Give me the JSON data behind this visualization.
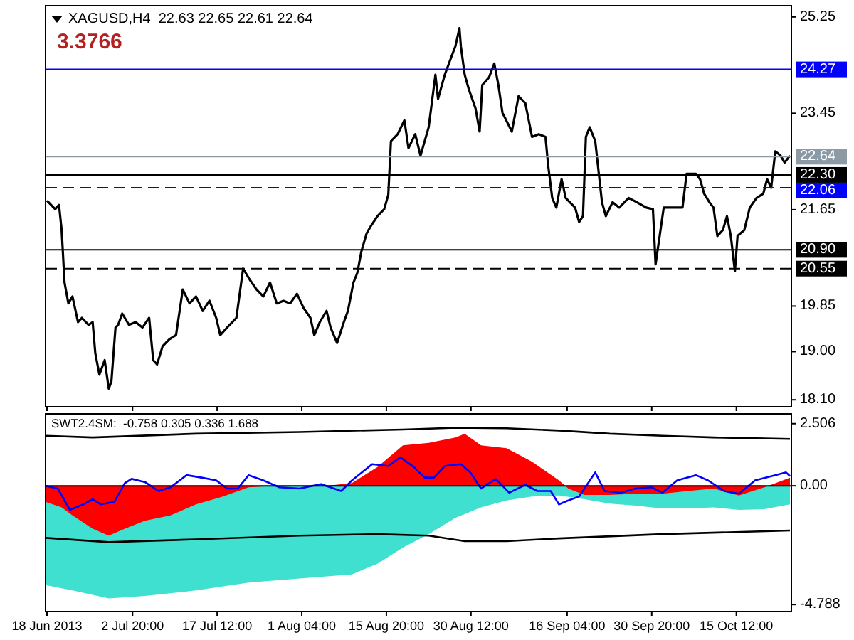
{
  "chart_data": [
    {
      "type": "line",
      "title": "XAGUSD,H4  22.63 22.65 22.61 22.64",
      "annotations": [
        "3.3766"
      ],
      "tick_labels": "y",
      "xlim": [
        "2013-06-17T18:00",
        "2013-10-25T01:00"
      ],
      "xticks": [
        {
          "value": "2013-06-18",
          "label": null
        },
        {
          "value": "2013-07-02T20:00",
          "label": null
        },
        {
          "value": "2013-07-17T12:00",
          "label": null
        },
        {
          "value": "2013-08-01T04:00",
          "label": null
        },
        {
          "value": "2013-08-15T20:00",
          "label": null
        },
        {
          "value": "2013-08-30T12:00",
          "label": null
        },
        {
          "value": "2013-09-16T04:00",
          "label": null
        },
        {
          "value": "2013-09-30T20:00",
          "label": null
        },
        {
          "value": "2013-10-15T12:00",
          "label": null
        }
      ],
      "ylim": [
        17.97,
        25.46
      ],
      "yticks": [
        25.25,
        23.45,
        21.65,
        19.85,
        {
          "value": 19,
          "label": "19.00"
        },
        {
          "value": 18.1,
          "label": "18.10"
        }
      ],
      "ref_lines": [
        {
          "axis": "y",
          "value": 24.27,
          "label": "24.27",
          "color": "#0000ff",
          "line_style": "solid"
        },
        {
          "axis": "y",
          "value": 22.64,
          "label": "22.64",
          "color": "#8c9aa5",
          "line_style": "solid"
        },
        {
          "axis": "y",
          "value": 22.3,
          "label": "22.30",
          "color": "#000000",
          "line_style": "solid"
        },
        {
          "axis": "y",
          "value": 22.06,
          "label": "22.06",
          "color": "#0000ff",
          "line_style": "dashed"
        },
        {
          "axis": "y",
          "value": 20.9,
          "label": "20.90",
          "color": "#000000",
          "line_style": "solid"
        },
        {
          "axis": "y",
          "value": 20.55,
          "label": "20.55",
          "color": "#000000",
          "line_style": "dashed"
        }
      ],
      "series": [
        {
          "color": "#000000",
          "x": [
            "2013-06-18T00:00",
            "2013-06-19T10:00",
            "2013-06-20T02:00",
            "2013-06-20T13:00",
            "2013-06-21T01:00",
            "2013-06-21T17:00",
            "2013-06-22T10:00",
            "2013-06-23T09:00",
            "2013-06-24T01:00",
            "2013-06-25T05:00",
            "2013-06-25T22:00",
            "2013-06-26T09:00",
            "2013-06-27T02:00",
            "2013-06-28T00:00",
            "2013-06-28T17:00",
            "2013-06-29T04:00",
            "2013-06-29T21:00",
            "2013-06-30T08:00",
            "2013-07-01T01:00",
            "2013-07-02T05:00",
            "2013-07-03T09:00",
            "2013-07-04T13:00",
            "2013-07-05T17:00",
            "2013-07-06T10:00",
            "2013-07-07T02:00",
            "2013-07-08T01:00",
            "2013-07-09T05:00",
            "2013-07-10T09:00",
            "2013-07-11T13:00",
            "2013-07-12T17:00",
            "2013-07-13T20:00",
            "2013-07-15T00:00",
            "2013-07-16T04:00",
            "2013-07-17T08:00",
            "2013-07-18T01:00",
            "2013-07-19T16:00",
            "2013-07-20T20:00",
            "2013-07-22T00:00",
            "2013-07-23T04:00",
            "2013-07-24T08:00",
            "2013-07-25T12:00",
            "2013-07-26T16:00",
            "2013-07-27T20:00",
            "2013-07-29T00:00",
            "2013-07-30T04:00",
            "2013-07-31T08:00",
            "2013-08-01T12:00",
            "2013-08-02T16:00",
            "2013-08-03T08:00",
            "2013-08-04T07:00",
            "2013-08-05T11:00",
            "2013-08-06T04:00",
            "2013-08-07T07:00",
            "2013-08-08T11:00",
            "2013-08-09T04:00",
            "2013-08-10T03:00",
            "2013-08-10T19:00",
            "2013-08-11T12:00",
            "2013-08-12T10:00",
            "2013-08-13T03:00",
            "2013-08-14T07:00",
            "2013-08-15T11:00",
            "2013-08-16T04:00",
            "2013-08-16T15:00",
            "2013-08-17T19:00",
            "2013-08-18T23:00",
            "2013-08-19T16:00",
            "2013-08-20T20:00",
            "2013-08-21T18:00",
            "2013-08-23T04:00",
            "2013-08-24T08:00",
            "2013-08-24T19:00",
            "2013-08-25T23:00",
            "2013-08-27T03:00",
            "2013-08-27T19:00",
            "2013-08-28T12:00",
            "2013-08-28T18:00",
            "2013-08-29T10:00",
            "2013-08-30T03:00",
            "2013-08-31T07:00",
            "2013-09-01T00:00",
            "2013-09-01T11:00",
            "2013-09-02T15:00",
            "2013-09-03T13:00",
            "2013-09-04T06:00",
            "2013-09-04T23:00",
            "2013-09-06T14:00",
            "2013-09-07T18:00",
            "2013-09-08T22:00",
            "2013-09-10T02:00",
            "2013-09-11T06:00",
            "2013-09-12T10:00",
            "2013-09-12T21:00",
            "2013-09-13T14:00",
            "2013-09-14T07:00",
            "2013-09-15T05:00",
            "2013-09-15T22:00",
            "2013-09-17T13:00",
            "2013-09-18T06:00",
            "2013-09-18T22:00",
            "2013-09-19T10:00",
            "2013-09-20T02:00",
            "2013-09-21T01:00",
            "2013-09-21T12:00",
            "2013-09-22T05:00",
            "2013-09-22T21:00",
            "2013-09-24T01:00",
            "2013-09-25T05:00",
            "2013-09-26T20:00",
            "2013-09-28T06:00",
            "2013-09-29T21:00",
            "2013-10-01T01:00",
            "2013-10-01T12:00",
            "2013-10-02T05:00",
            "2013-10-02T22:00",
            "2013-10-04T13:00",
            "2013-10-06T04:00",
            "2013-10-06T21:00",
            "2013-10-08T12:00",
            "2013-10-09T05:00",
            "2013-10-09T22:00",
            "2013-10-10T20:00",
            "2013-10-11T13:00",
            "2013-10-12T05:00",
            "2013-10-13T04:00",
            "2013-10-13T21:00",
            "2013-10-14T13:00",
            "2013-10-15T06:00",
            "2013-10-15T17:00",
            "2013-10-16T21:00",
            "2013-10-17T20:00",
            "2013-10-19T00:00",
            "2013-10-20T04:00",
            "2013-10-20T20:00",
            "2013-10-21T13:00",
            "2013-10-22T06:00",
            "2013-10-23T04:00",
            "2013-10-23T21:00",
            "2013-10-24T19:00"
          ],
          "values": [
            21.82,
            21.66,
            21.74,
            21.27,
            20.29,
            19.9,
            20.03,
            19.55,
            19.63,
            19.5,
            19.55,
            18.97,
            18.57,
            18.84,
            18.31,
            18.44,
            19.45,
            19.5,
            19.71,
            19.5,
            19.55,
            19.45,
            19.63,
            18.84,
            18.76,
            19.1,
            19.23,
            19.31,
            20.16,
            19.9,
            20.03,
            19.76,
            19.95,
            19.63,
            19.31,
            19.5,
            19.63,
            20.55,
            20.34,
            20.16,
            20.03,
            20.29,
            19.9,
            19.95,
            19.9,
            20.08,
            19.81,
            19.63,
            19.31,
            19.55,
            19.76,
            19.45,
            19.16,
            19.55,
            19.76,
            20.29,
            20.47,
            20.87,
            21.21,
            21.34,
            21.53,
            21.66,
            21.93,
            22.93,
            23.06,
            23.32,
            22.8,
            23.06,
            22.66,
            23.19,
            24.17,
            23.72,
            24.17,
            24.51,
            24.7,
            25.04,
            24.7,
            24.17,
            23.9,
            23.54,
            23.11,
            23.98,
            24.12,
            24.38,
            23.98,
            23.46,
            23.11,
            23.77,
            23.64,
            23.01,
            23.06,
            23.01,
            22.48,
            21.87,
            21.69,
            22.22,
            21.87,
            21.69,
            21.42,
            21.53,
            23.01,
            23.19,
            22.93,
            22.48,
            21.79,
            21.53,
            21.79,
            21.69,
            21.87,
            21.79,
            21.69,
            21.66,
            20.63,
            21.16,
            21.69,
            21.69,
            21.69,
            22.32,
            22.32,
            22.22,
            21.95,
            21.79,
            21.69,
            21.16,
            21.27,
            21.53,
            21.16,
            20.5,
            21.16,
            21.27,
            21.69,
            21.87,
            21.95,
            22.22,
            22.06,
            22.74,
            22.66,
            22.53,
            22.66
          ]
        }
      ]
    },
    {
      "type": "line",
      "title": "SWT2.4SM:  -0.758 0.305 0.336 1.688",
      "xlim": [
        "2013-06-17T18:00",
        "2013-10-25T01:00"
      ],
      "xticks": [
        {
          "value": "2013-06-18",
          "label": "18 Jun 2013"
        },
        {
          "value": "2013-07-02T20:00",
          "label": "2 Jul 20:00"
        },
        {
          "value": "2013-07-17T12:00",
          "label": "17 Jul 12:00"
        },
        {
          "value": "2013-08-01T04:00",
          "label": "1 Aug 04:00"
        },
        {
          "value": "2013-08-15T20:00",
          "label": "15 Aug 20:00"
        },
        {
          "value": "2013-08-30T12:00",
          "label": "30 Aug 12:00"
        },
        {
          "value": "2013-09-16T04:00",
          "label": "16 Sep 04:00"
        },
        {
          "value": "2013-09-30T20:00",
          "label": "30 Sep 20:00"
        },
        {
          "value": "2013-10-15T12:00",
          "label": "15 Oct 12:00"
        }
      ],
      "ylim": [
        -5.07,
        2.9
      ],
      "yticks": [
        2.506,
        {
          "value": 0,
          "label": "0.00"
        },
        -4.788
      ],
      "ref_lines": [
        {
          "axis": "y",
          "value": 0,
          "color": "#000000",
          "line_style": "solid"
        }
      ],
      "series": [
        {
          "type": "area",
          "color": "#40e0d0",
          "x": [
            "2013-06-17T18:00",
            "2013-06-22T10:00",
            "2013-06-28T17:00",
            "2013-07-05T00:00",
            "2013-07-13T20:00",
            "2013-07-22T23:00",
            "2013-07-31T19:00",
            "2013-08-09T21:00",
            "2013-08-14T07:00",
            "2013-08-18T17:00",
            "2013-08-23T04:00",
            "2013-08-27T19:00",
            "2013-09-01T06:00",
            "2013-09-05T16:00",
            "2013-09-10T02:00",
            "2013-09-14T18:00",
            "2013-09-19T04:00",
            "2013-09-23T14:00",
            "2013-09-28T00:00",
            "2013-10-02T16:00",
            "2013-10-07T02:00",
            "2013-10-11T13:00",
            "2013-10-15T23:00",
            "2013-10-20T09:00",
            "2013-10-24T19:00"
          ],
          "values": [
            -4.0,
            -4.22,
            -4.54,
            -4.44,
            -4.22,
            -3.9,
            -3.74,
            -3.57,
            -3.14,
            -2.49,
            -1.95,
            -1.29,
            -0.87,
            -0.59,
            -0.43,
            -0.39,
            -0.54,
            -0.72,
            -0.8,
            -0.91,
            -0.91,
            -0.87,
            -0.97,
            -0.94,
            -0.75
          ]
        },
        {
          "type": "area",
          "color": "#ff0000",
          "x": [
            "2013-06-17T18:00",
            "2013-06-20T13:00",
            "2013-06-22T10:00",
            "2013-06-25T22:00",
            "2013-06-28T17:00",
            "2013-07-01T12:00",
            "2013-07-05T00:00",
            "2013-07-09T10:00",
            "2013-07-13T20:00",
            "2013-07-18T12:00",
            "2013-07-22T23:00",
            "2013-07-27T09:00",
            "2013-08-05T11:00",
            "2013-08-09T21:00",
            "2013-08-14T07:00",
            "2013-08-18T17:00",
            "2013-08-23T04:00",
            "2013-08-27T19:00",
            "2013-08-29T10:00",
            "2013-09-01T06:00",
            "2013-09-05T16:00",
            "2013-09-10T02:00",
            "2013-09-14T18:00",
            "2013-09-16T09:00",
            "2013-09-19T04:00",
            "2013-09-23T14:00",
            "2013-09-28T00:00",
            "2013-10-02T16:00",
            "2013-10-07T02:00",
            "2013-10-11T13:00",
            "2013-10-15T23:00",
            "2013-10-20T09:00",
            "2013-10-24T19:00"
          ],
          "values": [
            -0.65,
            -0.87,
            -1.19,
            -1.73,
            -2.01,
            -1.73,
            -1.41,
            -1.19,
            -0.75,
            -0.43,
            -0.06,
            0,
            0,
            0.11,
            0.76,
            1.63,
            1.73,
            1.95,
            2.1,
            1.63,
            1.52,
            0.97,
            0.22,
            -0.11,
            -0.37,
            -0.37,
            -0.32,
            -0.32,
            -0.21,
            -0.11,
            -0.39,
            -0.06,
            0.33
          ]
        },
        {
          "color": "#000000",
          "x": [
            "2013-06-17T18:00",
            "2013-06-25T22:00",
            "2013-07-13T20:00",
            "2013-07-31T19:00",
            "2013-08-18T17:00",
            "2013-08-27T19:00",
            "2013-09-05T16:00",
            "2013-09-14T18:00",
            "2013-09-23T14:00",
            "2013-10-02T16:00",
            "2013-10-11T13:00",
            "2013-10-24T19:00"
          ],
          "values": [
            2.02,
            1.95,
            2.1,
            2.17,
            2.27,
            2.34,
            2.32,
            2.23,
            2.1,
            2.02,
            1.95,
            1.89
          ]
        },
        {
          "color": "#000000",
          "x": [
            "2013-06-17T18:00",
            "2013-06-28T17:00",
            "2013-07-13T20:00",
            "2013-07-31T19:00",
            "2013-08-14T07:00",
            "2013-08-23T04:00",
            "2013-08-29T10:00",
            "2013-09-05T16:00",
            "2013-09-14T18:00",
            "2013-10-02T16:00",
            "2013-10-24T19:00"
          ],
          "values": [
            -2.1,
            -2.27,
            -2.16,
            -2.01,
            -1.95,
            -2.01,
            -2.23,
            -2.23,
            -2.12,
            -1.95,
            -1.8
          ]
        },
        {
          "color": "#0000ff",
          "x": [
            "2013-06-17T18:00",
            "2013-06-19T21:00",
            "2013-06-21T23:00",
            "2013-06-24T07:00",
            "2013-06-25T22:00",
            "2013-06-27T08:00",
            "2013-06-29T16:00",
            "2013-07-01T12:00",
            "2013-07-02T16:00",
            "2013-07-05T00:00",
            "2013-07-07T08:00",
            "2013-07-09T10:00",
            "2013-07-12T05:00",
            "2013-07-14T19:00",
            "2013-07-17T08:00",
            "2013-07-19T05:00",
            "2013-07-21T02:00",
            "2013-07-22T23:00",
            "2013-07-25T12:00",
            "2013-07-28T07:00",
            "2013-07-31T19:00",
            "2013-08-04T12:00",
            "2013-08-08T00:00",
            "2013-08-09T21:00",
            "2013-08-13T09:00",
            "2013-08-16T04:00",
            "2013-08-18T06:00",
            "2013-08-20T14:00",
            "2013-08-22T11:00",
            "2013-08-24T02:00",
            "2013-08-25T23:00",
            "2013-08-28T18:00",
            "2013-08-30T09:00",
            "2013-09-01T06:00",
            "2013-09-03T19:00",
            "2013-09-06T03:00",
            "2013-09-08T22:00",
            "2013-09-11T00:00",
            "2013-09-13T08:00",
            "2013-09-14T18:00",
            "2013-09-16T09:00",
            "2013-09-18T06:00",
            "2013-09-21T01:00",
            "2013-09-22T16:00",
            "2013-09-25T11:00",
            "2013-09-28T00:00",
            "2013-09-30T20:00",
            "2013-10-02T16:00",
            "2013-10-05T06:00",
            "2013-10-08T12:00",
            "2013-10-10T14:00",
            "2013-10-13T09:00",
            "2013-10-15T23:00",
            "2013-10-18T18:00",
            "2013-10-22T06:00",
            "2013-10-24T03:00",
            "2013-10-24T19:00"
          ],
          "values": [
            0,
            -0.11,
            -0.97,
            -0.75,
            -0.54,
            -0.75,
            -0.65,
            0.11,
            0.28,
            0.15,
            -0.21,
            -0.06,
            0.43,
            0.33,
            0.22,
            -0.11,
            -0.11,
            0.43,
            0.22,
            -0.06,
            -0.11,
            0.07,
            -0.21,
            0.22,
            0.87,
            0.8,
            1.15,
            0.76,
            0.33,
            0.33,
            0.8,
            0.87,
            0.54,
            -0.11,
            0.28,
            -0.28,
            0.04,
            -0.21,
            -0.21,
            -0.75,
            -0.59,
            -0.43,
            0.54,
            -0.21,
            -0.28,
            -0.11,
            -0.06,
            -0.28,
            0.22,
            0.43,
            0.22,
            -0.21,
            -0.32,
            0.22,
            0.43,
            0.54,
            0.39
          ]
        }
      ]
    }
  ]
}
